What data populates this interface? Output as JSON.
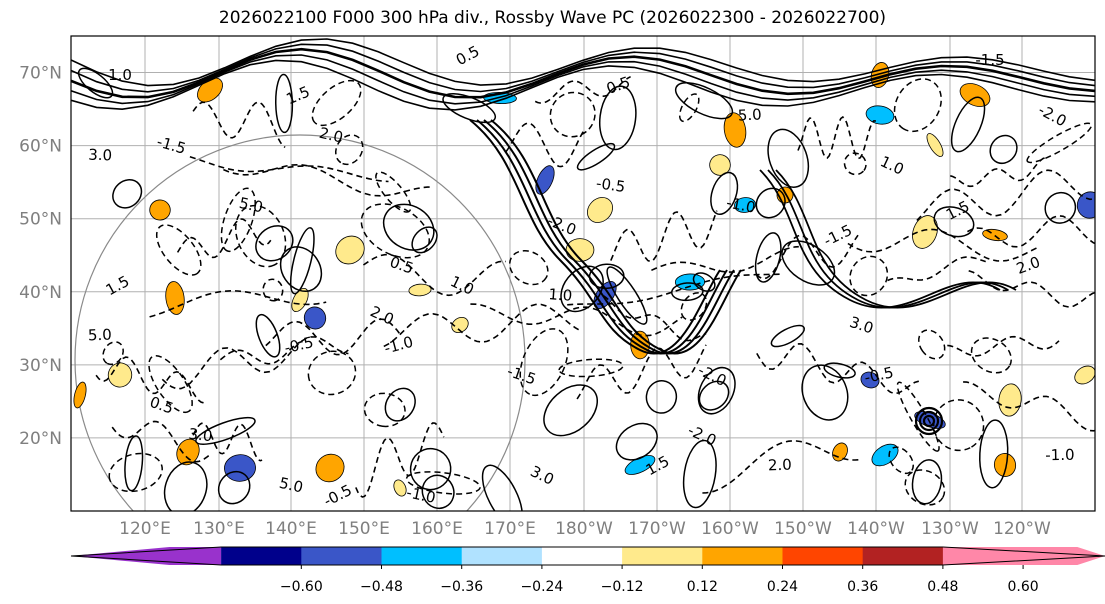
{
  "title": "2026022100 F000 300 hPa div., Rossby Wave PC (2026022300 - 2026022700)",
  "map": {
    "lat_labels": [
      "70°N",
      "60°N",
      "50°N",
      "40°N",
      "30°N",
      "20°N"
    ],
    "lat_values": [
      70,
      60,
      50,
      40,
      30,
      20
    ],
    "lon_labels": [
      "120°E",
      "130°E",
      "140°E",
      "150°E",
      "160°E",
      "170°E",
      "180°W",
      "170°W",
      "160°W",
      "150°W",
      "140°W",
      "130°W",
      "120°W"
    ],
    "lat_range": [
      10,
      75
    ],
    "contour_labels": [
      "0.5",
      "1.0",
      "1.5",
      "2.0",
      "3.0",
      "5.0",
      "-0.5",
      "-1.0",
      "-1.5",
      "-2.0"
    ]
  },
  "colorbar": {
    "tick_labels": [
      "−0.60",
      "−0.48",
      "−0.36",
      "−0.24",
      "−0.12",
      "0.12",
      "0.24",
      "0.36",
      "0.48",
      "0.60"
    ],
    "segment_colors": [
      "#9932cc",
      "#00008b",
      "#3a56c8",
      "#00bfff",
      "#b0e2ff",
      "#ffffff",
      "#ffea8c",
      "#ffa500",
      "#ff4500",
      "#b22222",
      "#ff87a8"
    ]
  }
}
